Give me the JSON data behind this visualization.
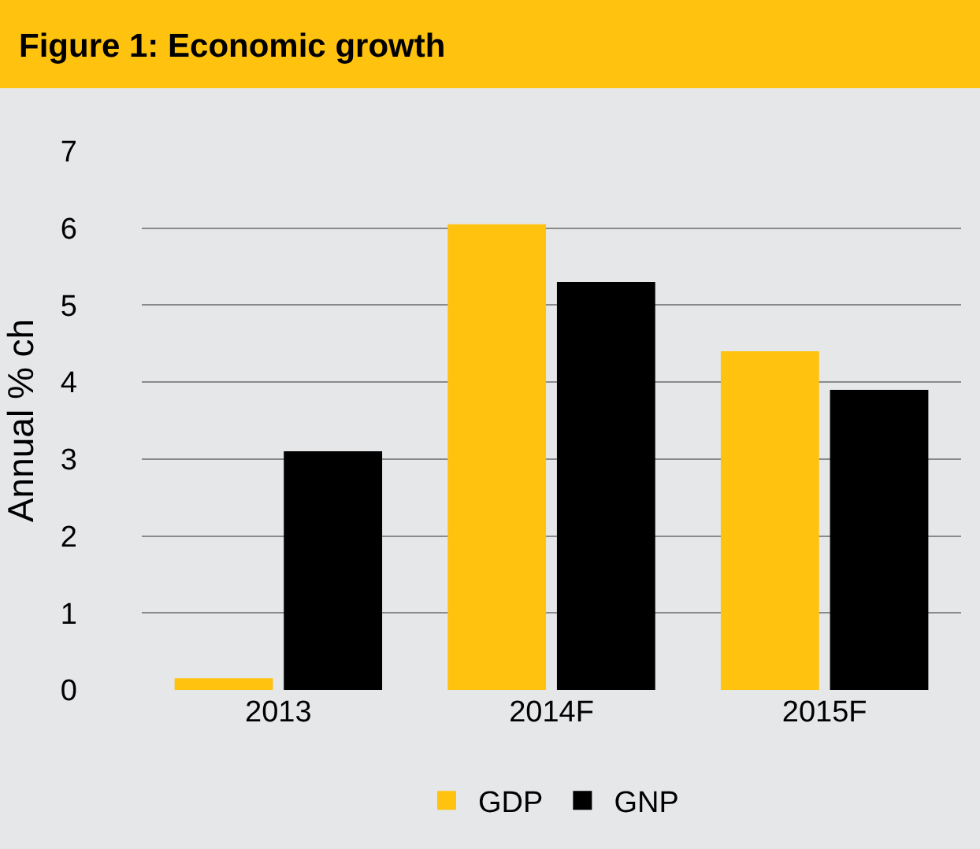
{
  "chart_data": {
    "type": "bar",
    "title": "Figure 1: Economic growth",
    "ylabel": "Annual % ch",
    "categories": [
      "2013",
      "2014F",
      "2015F"
    ],
    "series": [
      {
        "name": "GDP",
        "color": "#ffc20e",
        "values": [
          0.15,
          6.05,
          4.4
        ]
      },
      {
        "name": "GNP",
        "color": "#000000",
        "values": [
          3.1,
          5.3,
          3.9
        ]
      }
    ],
    "ylim": [
      0,
      7
    ],
    "yticks": [
      0,
      1,
      2,
      3,
      4,
      5,
      6,
      7
    ],
    "grid": "y",
    "legend": "bottom"
  }
}
